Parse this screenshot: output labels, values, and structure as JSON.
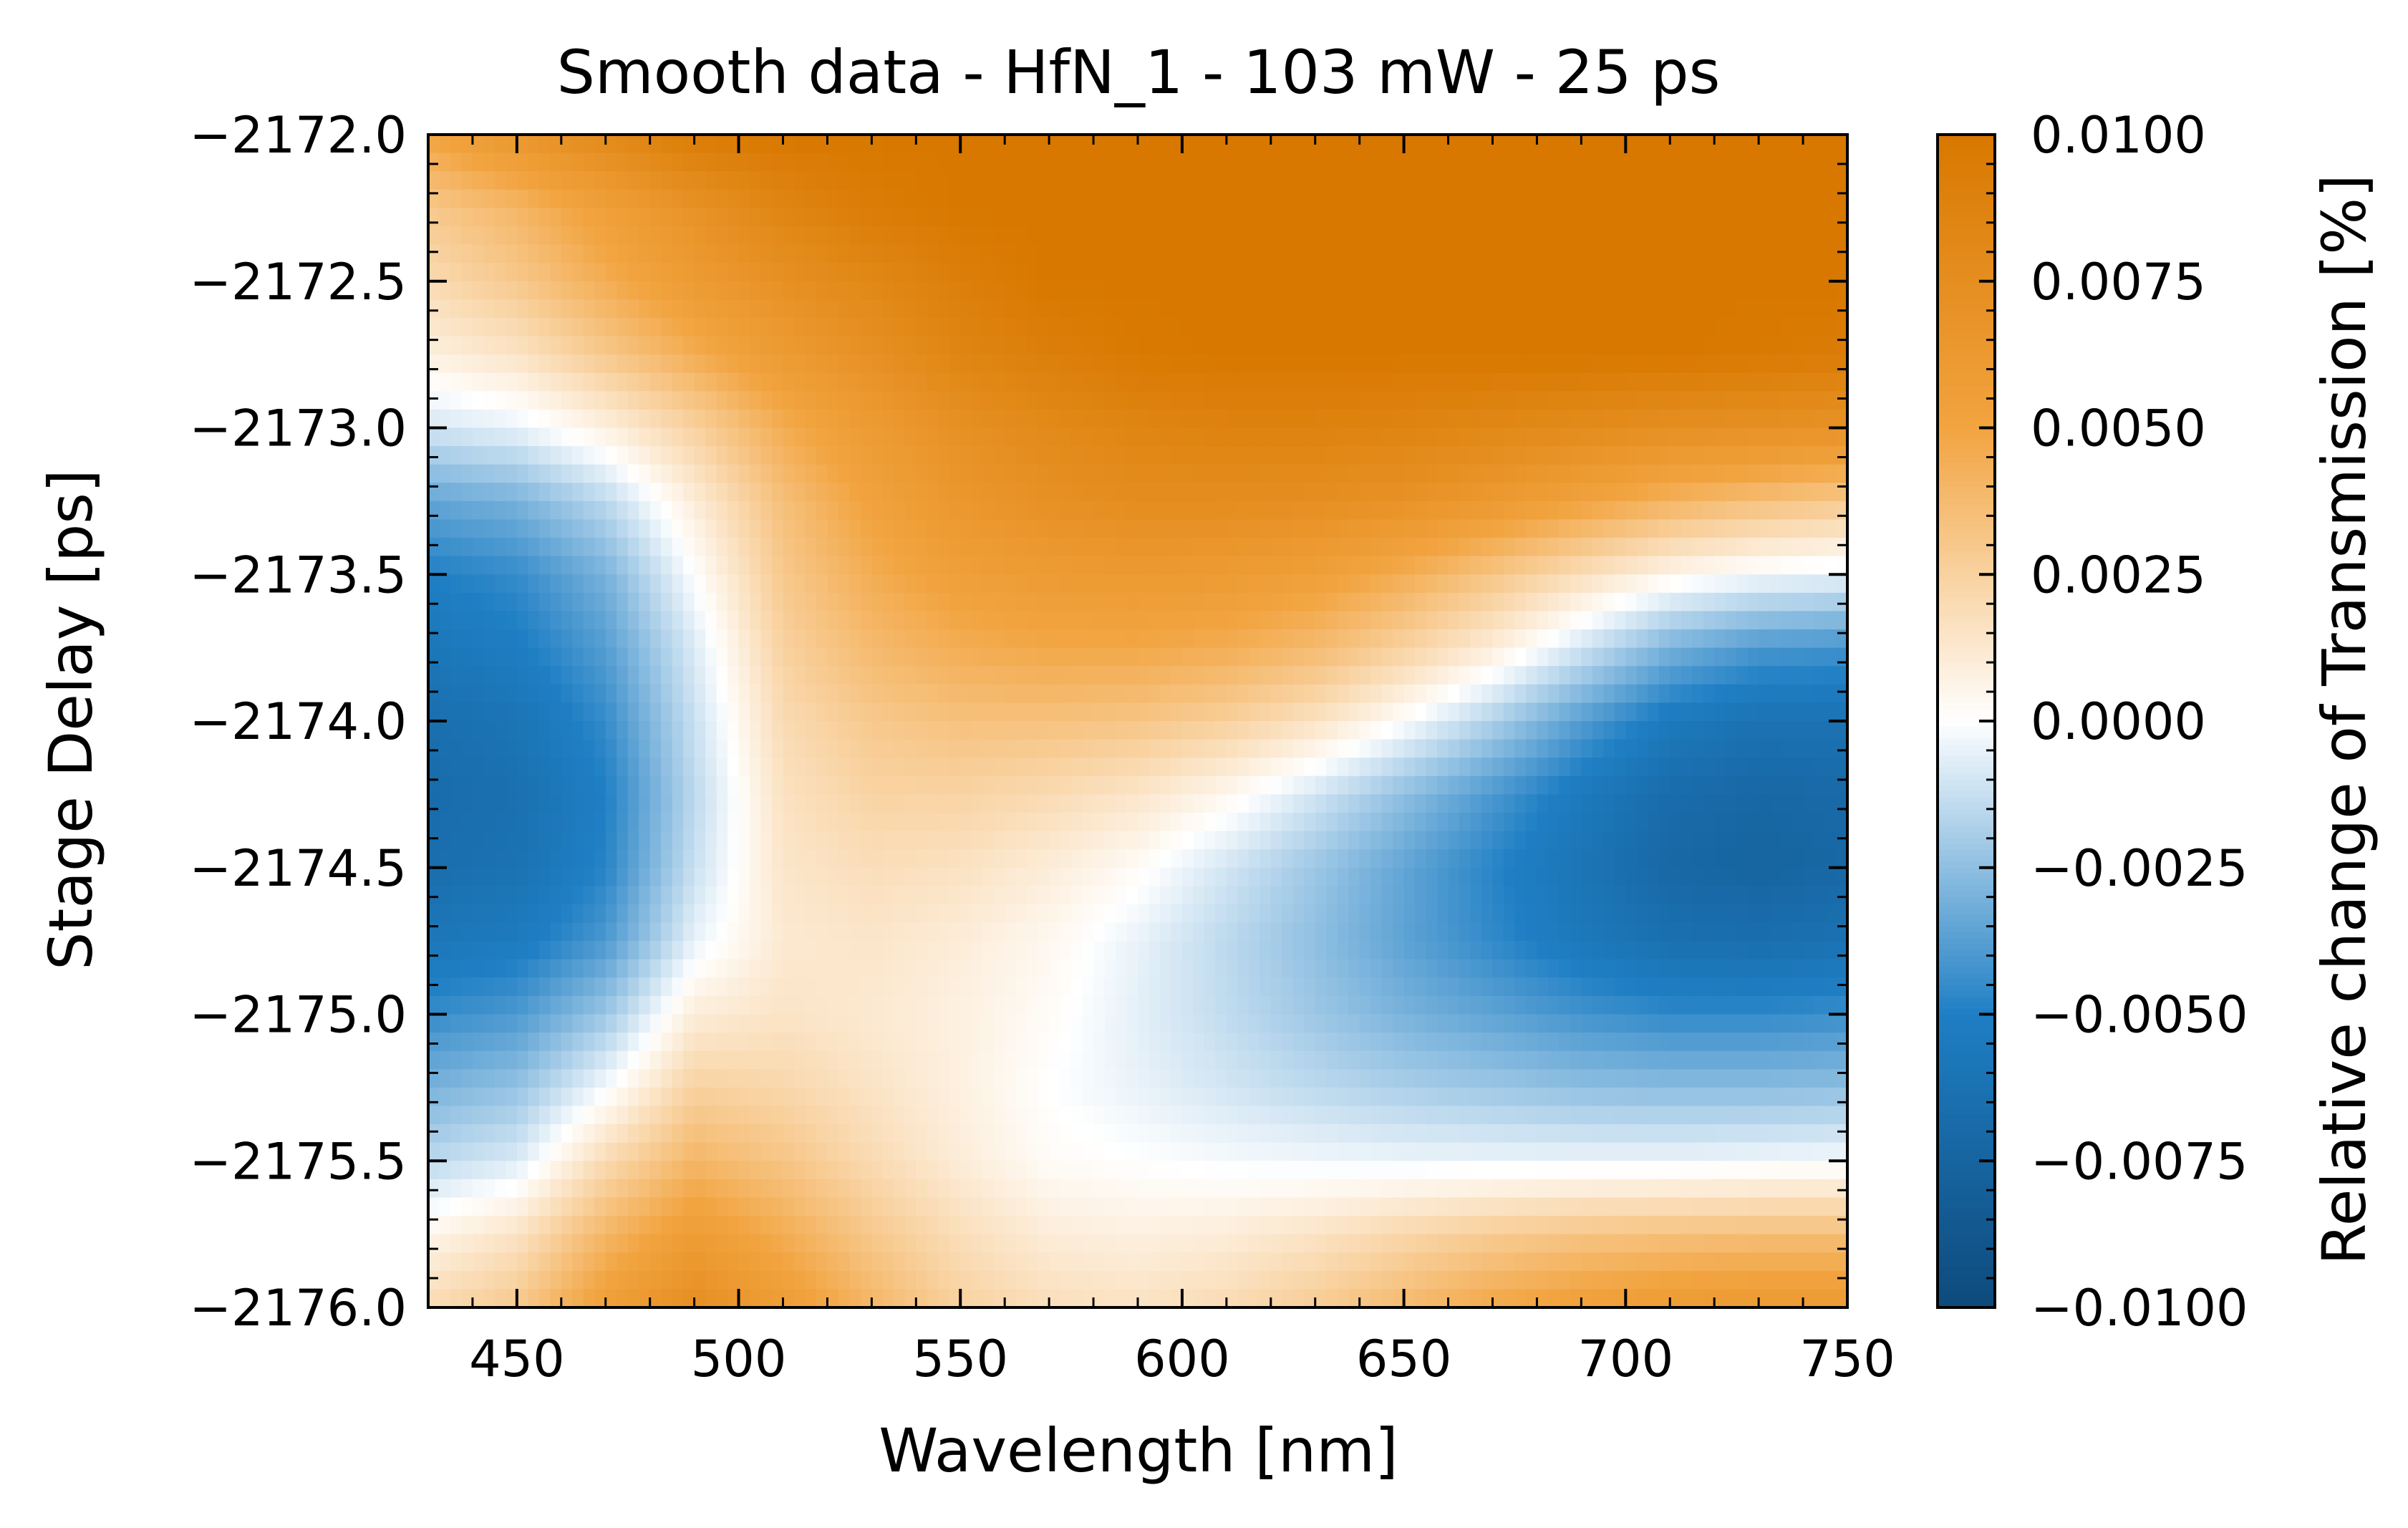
{
  "chart_data": {
    "type": "heatmap",
    "title": "Smooth data - HfN_1 - 103 mW - 25 ps",
    "xlabel": "Wavelength [nm]",
    "ylabel": "Stage Delay [ps]",
    "colorbar_label": "Relative change of Transmission [%]",
    "xlim": [
      430,
      750
    ],
    "ylim": [
      -2176.0,
      -2172.0
    ],
    "x_ticks": [
      450,
      500,
      550,
      600,
      650,
      700,
      750
    ],
    "x_tick_labels": [
      "450",
      "500",
      "550",
      "600",
      "650",
      "700",
      "750"
    ],
    "y_ticks": [
      -2172.0,
      -2172.5,
      -2173.0,
      -2173.5,
      -2174.0,
      -2174.5,
      -2175.0,
      -2175.5,
      -2176.0
    ],
    "y_tick_labels": [
      "−2172.0",
      "−2172.5",
      "−2173.0",
      "−2173.5",
      "−2174.0",
      "−2174.5",
      "−2175.0",
      "−2175.5",
      "−2176.0"
    ],
    "color_range": [
      -0.01,
      0.01
    ],
    "colorbar_ticks": [
      0.01,
      0.0075,
      0.005,
      0.0025,
      0.0,
      -0.0025,
      -0.005,
      -0.0075,
      -0.01
    ],
    "colorbar_tick_labels": [
      "0.0100",
      "0.0075",
      "0.0050",
      "0.0025",
      "0.0000",
      "−0.0025",
      "−0.0050",
      "−0.0075",
      "−0.0100"
    ],
    "colormap": {
      "negative": "#0e4a7c",
      "mid_negative": "#1f7fc4",
      "zero": "#ffffff",
      "mid_positive": "#f2a440",
      "positive": "#d87800"
    },
    "grid": false,
    "wavelengths": [
      430,
      450,
      470,
      490,
      510,
      530,
      550,
      570,
      590,
      610,
      630,
      650,
      670,
      690,
      710,
      730,
      750
    ],
    "delays": [
      -2172.0,
      -2172.25,
      -2172.5,
      -2172.75,
      -2173.0,
      -2173.25,
      -2173.5,
      -2173.75,
      -2174.0,
      -2174.25,
      -2174.5,
      -2174.75,
      -2175.0,
      -2175.25,
      -2175.5,
      -2175.75,
      -2176.0
    ],
    "values": [
      [
        0.005,
        0.0065,
        0.008,
        0.0095,
        0.01,
        0.01,
        0.01,
        0.01,
        0.01,
        0.01,
        0.01,
        0.01,
        0.01,
        0.01,
        0.01,
        0.01,
        0.01
      ],
      [
        0.003,
        0.004,
        0.0055,
        0.007,
        0.0085,
        0.0095,
        0.01,
        0.01,
        0.01,
        0.01,
        0.01,
        0.01,
        0.01,
        0.01,
        0.01,
        0.01,
        0.01
      ],
      [
        0.002,
        0.003,
        0.0045,
        0.006,
        0.0072,
        0.0082,
        0.0092,
        0.01,
        0.01,
        0.01,
        0.01,
        0.01,
        0.01,
        0.01,
        0.01,
        0.01,
        0.01
      ],
      [
        0.0008,
        0.0015,
        0.003,
        0.0045,
        0.006,
        0.0072,
        0.0085,
        0.0092,
        0.0098,
        0.01,
        0.01,
        0.01,
        0.01,
        0.01,
        0.01,
        0.0098,
        0.0095
      ],
      [
        -0.001,
        -0.0005,
        0.0008,
        0.0025,
        0.0045,
        0.006,
        0.0072,
        0.008,
        0.0085,
        0.0088,
        0.0088,
        0.0086,
        0.0082,
        0.0078,
        0.0074,
        0.0072,
        0.007
      ],
      [
        -0.0035,
        -0.003,
        -0.0015,
        0.001,
        0.0035,
        0.0052,
        0.0065,
        0.0072,
        0.0076,
        0.0076,
        0.0074,
        0.007,
        0.0062,
        0.0052,
        0.0042,
        0.0035,
        0.003
      ],
      [
        -0.005,
        -0.0045,
        -0.003,
        0.0,
        0.003,
        0.0045,
        0.0055,
        0.006,
        0.0062,
        0.006,
        0.0055,
        0.0045,
        0.0032,
        0.0018,
        0.0005,
        -0.0002,
        -0.0005
      ],
      [
        -0.0058,
        -0.0052,
        -0.0038,
        -0.0008,
        0.0025,
        0.0038,
        0.0045,
        0.0048,
        0.0048,
        0.0045,
        0.0038,
        0.0025,
        0.001,
        -0.001,
        -0.003,
        -0.004,
        -0.0042
      ],
      [
        -0.0065,
        -0.006,
        -0.0045,
        -0.0012,
        0.002,
        0.003,
        0.0034,
        0.0034,
        0.0032,
        0.0026,
        0.0016,
        0.0,
        -0.0018,
        -0.0038,
        -0.0055,
        -0.0062,
        -0.0062
      ],
      [
        -0.0068,
        -0.0064,
        -0.005,
        -0.0015,
        0.0016,
        0.0024,
        0.0024,
        0.002,
        0.0014,
        0.0004,
        -0.001,
        -0.0025,
        -0.004,
        -0.0055,
        -0.0068,
        -0.0072,
        -0.007
      ],
      [
        -0.0066,
        -0.0062,
        -0.0048,
        -0.0012,
        0.0014,
        0.0018,
        0.0016,
        0.001,
        0.0002,
        -0.001,
        -0.0022,
        -0.0035,
        -0.0048,
        -0.006,
        -0.0072,
        -0.0075,
        -0.0072
      ],
      [
        -0.0058,
        -0.0054,
        -0.004,
        -0.0005,
        0.0012,
        0.0014,
        0.001,
        0.0004,
        -0.0005,
        -0.0015,
        -0.0025,
        -0.0036,
        -0.0046,
        -0.0056,
        -0.0064,
        -0.0066,
        -0.0062
      ],
      [
        -0.0045,
        -0.004,
        -0.0022,
        0.001,
        0.0015,
        0.0012,
        0.0008,
        0.0002,
        -0.0006,
        -0.0014,
        -0.0022,
        -0.003,
        -0.0036,
        -0.0042,
        -0.0046,
        -0.0046,
        -0.0044
      ],
      [
        -0.003,
        -0.0024,
        -0.0002,
        0.0025,
        0.0022,
        0.0015,
        0.0008,
        0.0,
        -0.0005,
        -0.001,
        -0.0015,
        -0.0019,
        -0.0022,
        -0.0025,
        -0.0026,
        -0.0026,
        -0.0025
      ],
      [
        -0.0015,
        -0.0008,
        0.002,
        0.004,
        0.0032,
        0.002,
        0.001,
        0.0002,
        0.0,
        -0.0002,
        -0.0003,
        -0.0004,
        -0.0004,
        -0.0004,
        -0.0004,
        -0.0003,
        -0.0002
      ],
      [
        0.0005,
        0.0015,
        0.004,
        0.0058,
        0.0045,
        0.003,
        0.0018,
        0.001,
        0.0008,
        0.001,
        0.0015,
        0.0022,
        0.0028,
        0.0032,
        0.0034,
        0.0035,
        0.0035
      ],
      [
        0.002,
        0.003,
        0.0055,
        0.0075,
        0.0058,
        0.004,
        0.0025,
        0.0018,
        0.0016,
        0.002,
        0.0028,
        0.0038,
        0.0048,
        0.0055,
        0.006,
        0.0062,
        0.0062
      ]
    ]
  }
}
